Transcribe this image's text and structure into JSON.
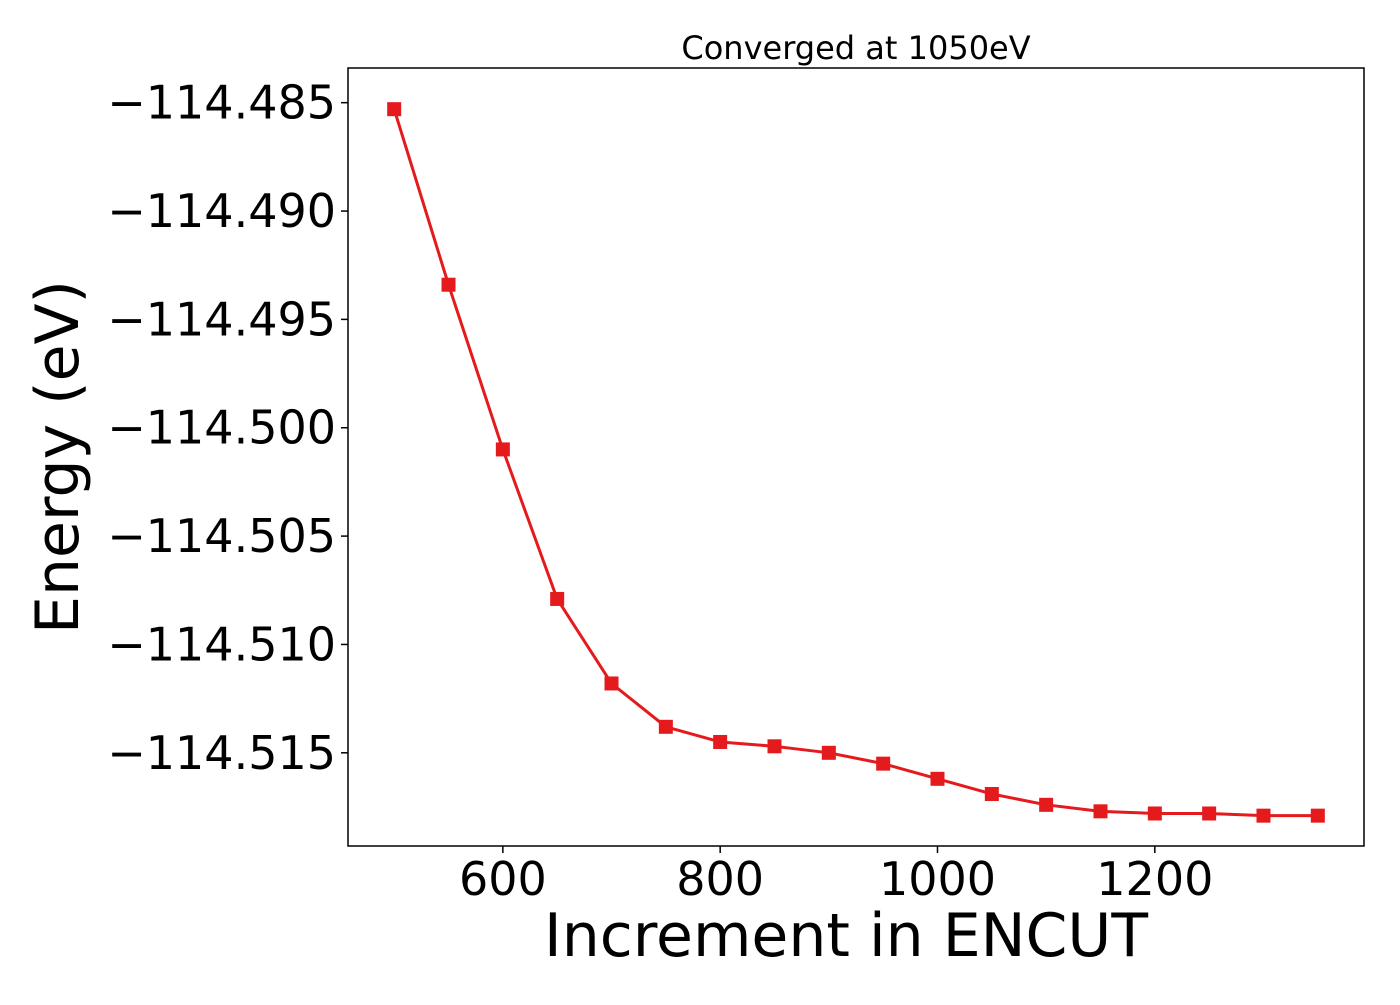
{
  "chart_data": {
    "type": "line",
    "title": "Converged at 1050eV",
    "xlabel": "Increment in ENCUT",
    "ylabel": "Energy (eV)",
    "xlim": [
      457.5,
      1392.5
    ],
    "ylim": [
      -114.5193,
      -114.4834
    ],
    "xticks": [
      {
        "value": 600,
        "label": "600"
      },
      {
        "value": 800,
        "label": "800"
      },
      {
        "value": 1000,
        "label": "1000"
      },
      {
        "value": 1200,
        "label": "1200"
      }
    ],
    "yticks": [
      {
        "value": -114.485,
        "label": "−114.485"
      },
      {
        "value": -114.49,
        "label": "−114.490"
      },
      {
        "value": -114.495,
        "label": "−114.495"
      },
      {
        "value": -114.5,
        "label": "−114.500"
      },
      {
        "value": -114.505,
        "label": "−114.505"
      },
      {
        "value": -114.51,
        "label": "−114.510"
      },
      {
        "value": -114.515,
        "label": "−114.515"
      }
    ],
    "grid": false,
    "legend": "none",
    "series": [
      {
        "color": "#e41a1c",
        "marker": "square",
        "x": [
          500,
          550,
          600,
          650,
          700,
          750,
          800,
          850,
          900,
          950,
          1000,
          1050,
          1100,
          1150,
          1200,
          1250,
          1300,
          1350
        ],
        "y": [
          -114.4853,
          -114.4934,
          -114.501,
          -114.5079,
          -114.5118,
          -114.5138,
          -114.5145,
          -114.5147,
          -114.515,
          -114.5155,
          -114.5162,
          -114.5169,
          -114.5174,
          -114.5177,
          -114.5178,
          -114.5178,
          -114.5179,
          -114.5179
        ]
      }
    ]
  }
}
